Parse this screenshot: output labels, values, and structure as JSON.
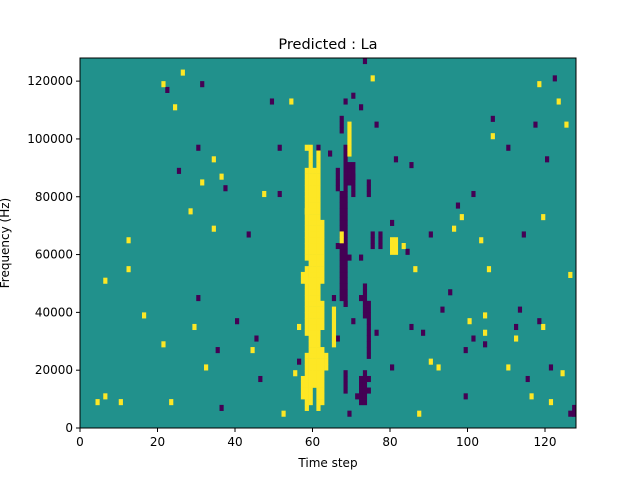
{
  "chart_data": {
    "type": "heatmap",
    "title": "Predicted : La",
    "xlabel": "Time step",
    "ylabel": "Frequency (Hz)",
    "xlim": [
      0,
      128
    ],
    "ylim": [
      0,
      128000
    ],
    "n_time_steps": 128,
    "n_freq_bins": 64,
    "levels": {
      "low": -1,
      "mid": 0,
      "high": 1
    },
    "colors": {
      "low": "#440154",
      "mid": "#21918c",
      "high": "#fde725"
    },
    "x_ticks": [
      0,
      20,
      40,
      60,
      80,
      100,
      120
    ],
    "x_tick_labels": [
      "0",
      "20",
      "40",
      "60",
      "80",
      "100",
      "120"
    ],
    "y_ticks": [
      0,
      20000,
      40000,
      60000,
      80000,
      100000,
      120000
    ],
    "y_tick_labels": [
      "0",
      "20000",
      "40000",
      "60000",
      "80000",
      "100000",
      "120000"
    ],
    "note_values": "cell values are -1 (low), 0 (mid) or +1 (high); listed as [time_step, freq_bin] indices, freq bin width 2000 Hz",
    "high_cells": [
      [
        4,
        4
      ],
      [
        6,
        5
      ],
      [
        10,
        4
      ],
      [
        16,
        19
      ],
      [
        12,
        27
      ],
      [
        12,
        32
      ],
      [
        21,
        59
      ],
      [
        24,
        55
      ],
      [
        28,
        37
      ],
      [
        26,
        61
      ],
      [
        31,
        42
      ],
      [
        34,
        46
      ],
      [
        34,
        34
      ],
      [
        32,
        10
      ],
      [
        23,
        4
      ],
      [
        29,
        17
      ],
      [
        36,
        43
      ],
      [
        47,
        40
      ],
      [
        44,
        13
      ],
      [
        54,
        56
      ],
      [
        56,
        17
      ],
      [
        52,
        2
      ],
      [
        55,
        9
      ],
      [
        58,
        25
      ],
      [
        58,
        37
      ],
      [
        58,
        44
      ],
      [
        58,
        48
      ],
      [
        75,
        60
      ],
      [
        83,
        31
      ],
      [
        86,
        27
      ],
      [
        90,
        11
      ],
      [
        92,
        10
      ],
      [
        87,
        2
      ],
      [
        96,
        34
      ],
      [
        98,
        36
      ],
      [
        100,
        18
      ],
      [
        104,
        16
      ],
      [
        104,
        19
      ],
      [
        105,
        27
      ],
      [
        106,
        50
      ],
      [
        103,
        32
      ],
      [
        110,
        10
      ],
      [
        112,
        15
      ],
      [
        116,
        5
      ],
      [
        119,
        17
      ],
      [
        119,
        36
      ],
      [
        118,
        59
      ],
      [
        121,
        4
      ],
      [
        123,
        56
      ],
      [
        125,
        52
      ],
      [
        126,
        26
      ],
      [
        124,
        9
      ],
      [
        21,
        14
      ],
      [
        6,
        25
      ]
    ],
    "low_cells": [
      [
        22,
        58
      ],
      [
        25,
        44
      ],
      [
        30,
        48
      ],
      [
        30,
        22
      ],
      [
        31,
        59
      ],
      [
        37,
        41
      ],
      [
        35,
        13
      ],
      [
        36,
        3
      ],
      [
        40,
        18
      ],
      [
        45,
        15
      ],
      [
        43,
        33
      ],
      [
        46,
        8
      ],
      [
        49,
        56
      ],
      [
        51,
        48
      ],
      [
        51,
        40
      ],
      [
        56,
        11
      ],
      [
        61,
        48
      ],
      [
        64,
        47
      ],
      [
        66,
        31
      ],
      [
        68,
        56
      ],
      [
        70,
        57
      ],
      [
        72,
        55
      ],
      [
        73,
        63
      ],
      [
        76,
        52
      ],
      [
        80,
        35
      ],
      [
        81,
        46
      ],
      [
        84,
        30
      ],
      [
        85,
        45
      ],
      [
        88,
        16
      ],
      [
        90,
        33
      ],
      [
        93,
        20
      ],
      [
        95,
        23
      ],
      [
        97,
        38
      ],
      [
        99,
        5
      ],
      [
        101,
        40
      ],
      [
        104,
        14
      ],
      [
        106,
        53
      ],
      [
        110,
        48
      ],
      [
        112,
        17
      ],
      [
        113,
        20
      ],
      [
        115,
        8
      ],
      [
        118,
        18
      ],
      [
        120,
        46
      ],
      [
        121,
        10
      ],
      [
        122,
        60
      ],
      [
        126,
        2
      ],
      [
        127,
        2
      ],
      [
        114,
        33
      ],
      [
        117,
        52
      ],
      [
        70,
        43
      ],
      [
        73,
        9
      ],
      [
        71,
        5
      ],
      [
        69,
        2
      ],
      [
        74,
        6
      ],
      [
        74,
        8
      ],
      [
        69,
        29
      ],
      [
        72,
        29
      ],
      [
        85,
        17
      ],
      [
        99,
        13
      ],
      [
        101,
        15
      ],
      [
        80,
        10
      ],
      [
        70,
        18
      ],
      [
        72,
        22
      ],
      [
        65,
        22
      ],
      [
        68,
        21
      ],
      [
        66,
        15
      ],
      [
        76,
        16
      ]
    ],
    "high_column_ranges": [
      {
        "t": 57,
        "from": 25,
        "to": 26
      },
      {
        "t": 57,
        "from": 5,
        "to": 8
      },
      {
        "t": 58,
        "from": 3,
        "to": 12
      },
      {
        "t": 58,
        "from": 16,
        "to": 27
      },
      {
        "t": 58,
        "from": 29,
        "to": 43
      },
      {
        "t": 59,
        "from": 4,
        "to": 48
      },
      {
        "t": 60,
        "from": 7,
        "to": 44
      },
      {
        "t": 61,
        "from": 3,
        "to": 47
      },
      {
        "t": 62,
        "from": 4,
        "to": 13
      },
      {
        "t": 62,
        "from": 17,
        "to": 21
      },
      {
        "t": 62,
        "from": 25,
        "to": 35
      },
      {
        "t": 63,
        "from": 10,
        "to": 12
      },
      {
        "t": 65,
        "from": 14,
        "to": 20
      },
      {
        "t": 67,
        "from": 32,
        "to": 33
      },
      {
        "t": 69,
        "from": 47,
        "to": 52
      },
      {
        "t": 80,
        "from": 30,
        "to": 32
      },
      {
        "t": 81,
        "from": 30,
        "to": 32
      }
    ],
    "low_column_ranges": [
      {
        "t": 67,
        "from": 22,
        "to": 40
      },
      {
        "t": 68,
        "from": 21,
        "to": 48
      },
      {
        "t": 67,
        "from": 51,
        "to": 53
      },
      {
        "t": 68,
        "from": 6,
        "to": 9
      },
      {
        "t": 72,
        "from": 4,
        "to": 8
      },
      {
        "t": 73,
        "from": 4,
        "to": 8
      },
      {
        "t": 73,
        "from": 19,
        "to": 24
      },
      {
        "t": 74,
        "from": 12,
        "to": 21
      },
      {
        "t": 74,
        "from": 40,
        "to": 42
      },
      {
        "t": 75,
        "from": 31,
        "to": 33
      },
      {
        "t": 77,
        "from": 31,
        "to": 33
      },
      {
        "t": 66,
        "from": 41,
        "to": 44
      },
      {
        "t": 69,
        "from": 42,
        "to": 45
      },
      {
        "t": 70,
        "from": 40,
        "to": 45
      },
      {
        "t": 127,
        "from": 2,
        "to": 3
      }
    ]
  }
}
